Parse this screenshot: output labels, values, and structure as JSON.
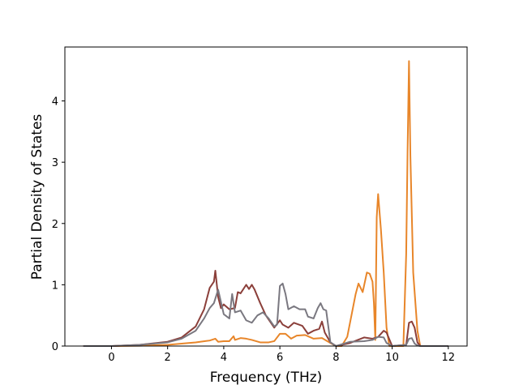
{
  "chart_data": {
    "type": "line",
    "title": "",
    "xlabel": "Frequency (THz)",
    "ylabel": "Partial Density of States",
    "xlim": [
      -1.66,
      12.67
    ],
    "ylim": [
      0,
      4.88
    ],
    "xticks": [
      0,
      2,
      4,
      6,
      8,
      10,
      12
    ],
    "yticks": [
      0,
      1,
      2,
      3,
      4
    ],
    "grid": false,
    "legend": "none",
    "series": [
      {
        "color": "#e8862a",
        "x": [
          -1.0,
          0.0,
          1.0,
          2.0,
          3.0,
          3.5,
          3.7,
          3.8,
          4.0,
          4.2,
          4.35,
          4.4,
          4.6,
          4.8,
          5.0,
          5.3,
          5.6,
          5.8,
          6.0,
          6.2,
          6.4,
          6.6,
          6.9,
          7.2,
          7.5,
          7.8,
          8.0,
          8.2,
          8.4,
          8.55,
          8.7,
          8.8,
          8.95,
          9.1,
          9.2,
          9.3,
          9.35,
          9.4,
          9.45,
          9.5,
          9.6,
          9.7,
          9.8,
          9.9,
          10.0,
          10.4,
          10.5,
          10.55,
          10.6,
          10.65,
          10.75,
          10.9,
          11.0,
          12.0
        ],
        "y": [
          0.0,
          0.0,
          0.005,
          0.02,
          0.06,
          0.09,
          0.12,
          0.07,
          0.08,
          0.08,
          0.16,
          0.1,
          0.13,
          0.12,
          0.1,
          0.06,
          0.06,
          0.08,
          0.2,
          0.2,
          0.12,
          0.17,
          0.18,
          0.12,
          0.13,
          0.05,
          0.0,
          0.0,
          0.15,
          0.5,
          0.85,
          1.02,
          0.88,
          1.2,
          1.18,
          1.05,
          0.7,
          0.1,
          2.1,
          2.48,
          1.9,
          1.2,
          0.3,
          0.0,
          0.0,
          0.0,
          1.5,
          3.2,
          4.65,
          3.1,
          1.2,
          0.25,
          0.0,
          0.0
        ]
      },
      {
        "color": "#8b3f3a",
        "x": [
          -1.0,
          0.0,
          1.0,
          2.0,
          2.5,
          3.0,
          3.3,
          3.5,
          3.65,
          3.7,
          3.8,
          3.9,
          4.0,
          4.2,
          4.4,
          4.5,
          4.6,
          4.8,
          4.9,
          5.0,
          5.1,
          5.3,
          5.5,
          5.8,
          6.0,
          6.1,
          6.3,
          6.5,
          6.8,
          7.0,
          7.2,
          7.4,
          7.5,
          7.6,
          7.8,
          8.0,
          8.5,
          9.0,
          9.3,
          9.5,
          9.7,
          9.8,
          10.0,
          10.5,
          10.6,
          10.7,
          10.8,
          10.9,
          11.0,
          12.0
        ],
        "y": [
          0.0,
          0.0,
          0.02,
          0.07,
          0.14,
          0.32,
          0.6,
          0.95,
          1.05,
          1.23,
          0.8,
          0.62,
          0.68,
          0.6,
          0.62,
          0.88,
          0.86,
          1.0,
          0.93,
          1.0,
          0.92,
          0.7,
          0.5,
          0.3,
          0.42,
          0.35,
          0.3,
          0.38,
          0.33,
          0.2,
          0.25,
          0.28,
          0.4,
          0.22,
          0.06,
          0.0,
          0.05,
          0.14,
          0.12,
          0.15,
          0.25,
          0.22,
          0.0,
          0.02,
          0.38,
          0.4,
          0.3,
          0.06,
          0.0,
          0.0
        ]
      },
      {
        "color": "#7a7880",
        "x": [
          -1.0,
          0.0,
          1.0,
          2.0,
          2.5,
          3.0,
          3.3,
          3.5,
          3.65,
          3.8,
          4.0,
          4.2,
          4.3,
          4.4,
          4.6,
          4.8,
          5.0,
          5.2,
          5.4,
          5.6,
          5.8,
          5.9,
          6.0,
          6.1,
          6.2,
          6.3,
          6.5,
          6.7,
          6.9,
          7.0,
          7.2,
          7.35,
          7.45,
          7.55,
          7.65,
          7.8,
          8.0,
          8.5,
          9.0,
          9.3,
          9.5,
          9.7,
          9.8,
          10.0,
          10.5,
          10.6,
          10.7,
          10.8,
          10.9,
          11.0,
          12.0
        ],
        "y": [
          0.0,
          0.0,
          0.02,
          0.06,
          0.12,
          0.25,
          0.45,
          0.62,
          0.7,
          0.92,
          0.52,
          0.45,
          0.85,
          0.55,
          0.58,
          0.42,
          0.38,
          0.5,
          0.55,
          0.45,
          0.32,
          0.35,
          0.98,
          1.02,
          0.85,
          0.6,
          0.65,
          0.6,
          0.6,
          0.48,
          0.45,
          0.62,
          0.7,
          0.6,
          0.58,
          0.06,
          0.0,
          0.07,
          0.08,
          0.1,
          0.15,
          0.14,
          0.05,
          0.0,
          0.02,
          0.12,
          0.13,
          0.04,
          0.01,
          0.0,
          0.0
        ]
      }
    ]
  }
}
